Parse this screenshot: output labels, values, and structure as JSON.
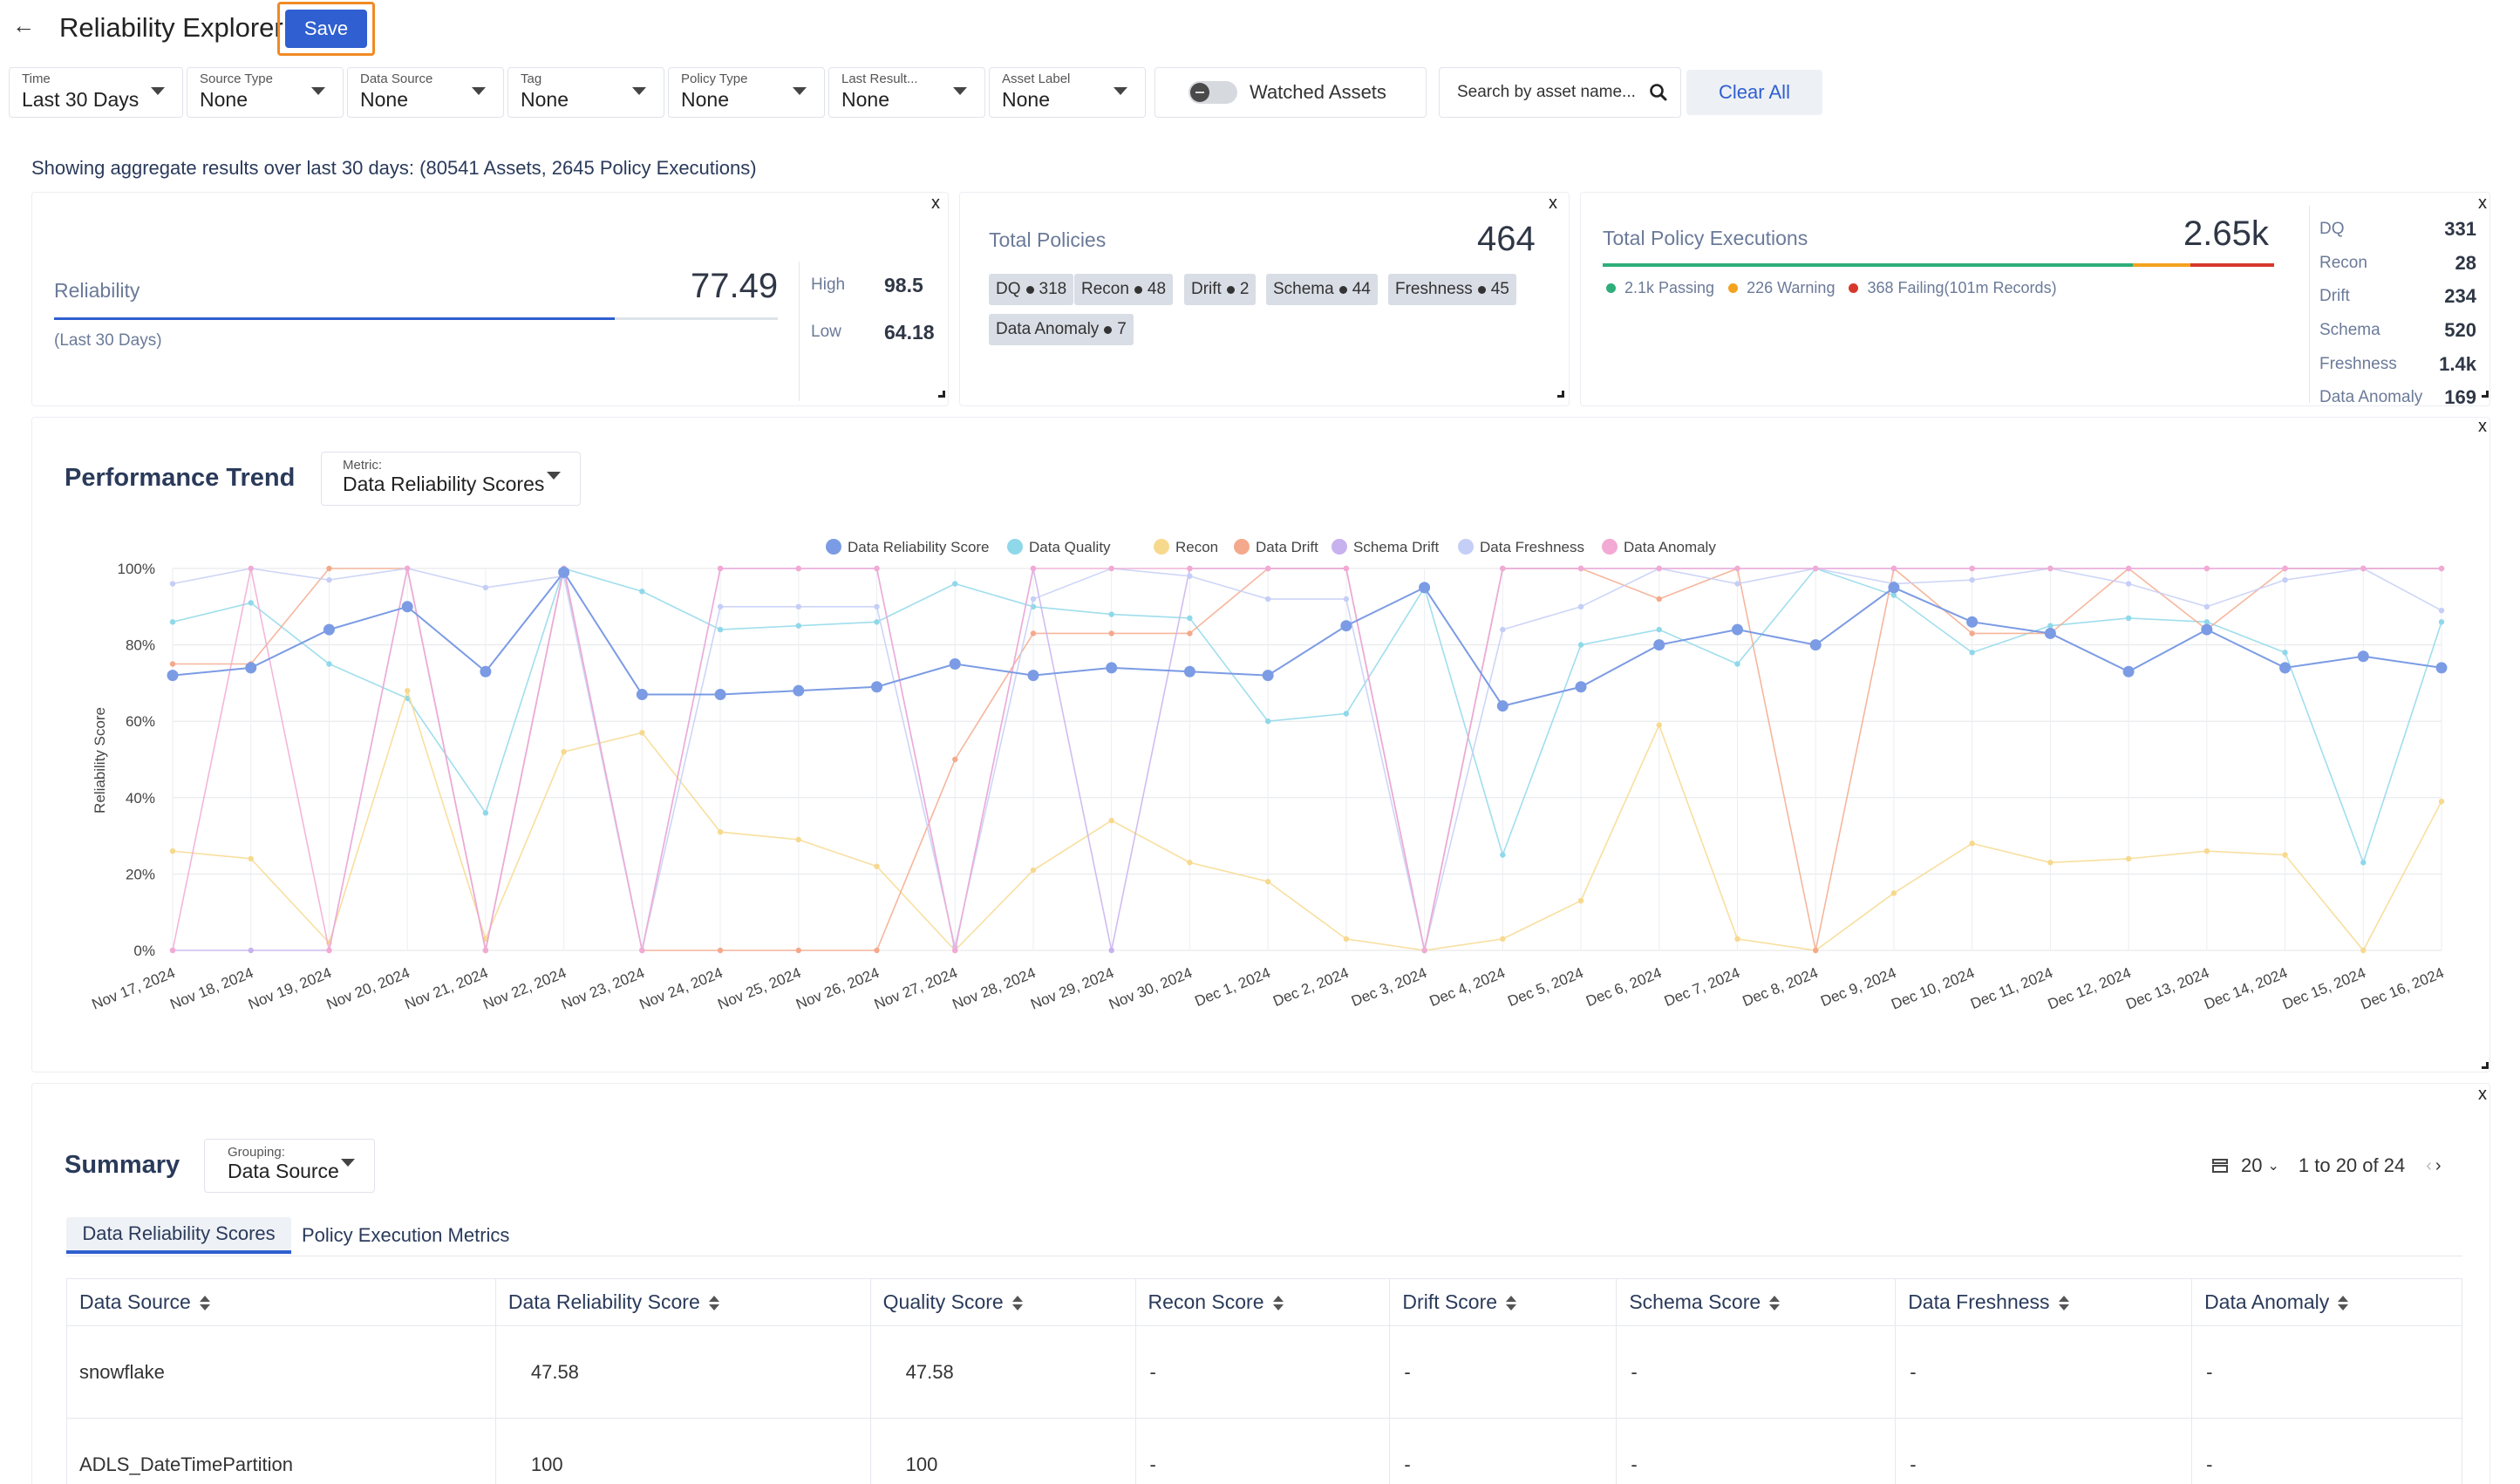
{
  "header": {
    "back_icon": "arrow-left-icon",
    "title": "Reliability Explorer",
    "save_label": "Save"
  },
  "filters": [
    {
      "label": "Time",
      "value": "Last 30 Days"
    },
    {
      "label": "Source Type",
      "value": "None"
    },
    {
      "label": "Data Source",
      "value": "None"
    },
    {
      "label": "Tag",
      "value": "None"
    },
    {
      "label": "Policy Type",
      "value": "None"
    },
    {
      "label": "Last Result...",
      "value": "None"
    },
    {
      "label": "Asset Label",
      "value": "None"
    }
  ],
  "watched_label": "Watched Assets",
  "search_placeholder": "Search by asset name...",
  "clear_label": "Clear All",
  "aggregate_text": "Showing aggregate results over last 30 days: (80541 Assets, 2645 Policy Executions)",
  "reliability": {
    "label": "Reliability",
    "value": "77.49",
    "period": "(Last 30 Days)",
    "high_label": "High",
    "high": "98.5",
    "low_label": "Low",
    "low": "64.18",
    "fill_fraction": 0.7749
  },
  "policies": {
    "label": "Total Policies",
    "value": "464",
    "tags": [
      {
        "name": "DQ",
        "count": "318"
      },
      {
        "name": "Recon",
        "count": "48"
      },
      {
        "name": "Drift",
        "count": "2"
      },
      {
        "name": "Schema",
        "count": "44"
      },
      {
        "name": "Freshness",
        "count": "45"
      },
      {
        "name": "Data Anomaly",
        "count": "7"
      }
    ]
  },
  "executions": {
    "label": "Total Policy Executions",
    "value": "2.65k",
    "passing": "2.1k Passing",
    "warning": "226 Warning",
    "failing": "368 Failing",
    "failing_records": "(101m Records)",
    "colors": {
      "passing": "#2fae7a",
      "warning": "#f3a21f",
      "failing": "#d8382c"
    },
    "bar_fractions": {
      "passing": 0.79,
      "warning": 0.085,
      "failing": 0.125
    },
    "breakdown": [
      {
        "name": "DQ",
        "value": "331"
      },
      {
        "name": "Recon",
        "value": "28"
      },
      {
        "name": "Drift",
        "value": "234"
      },
      {
        "name": "Schema",
        "value": "520"
      },
      {
        "name": "Freshness",
        "value": "1.4k"
      },
      {
        "name": "Data Anomaly",
        "value": "169"
      }
    ]
  },
  "close_glyph": "x",
  "trend": {
    "title": "Performance Trend",
    "metric_label": "Metric:",
    "metric_value": "Data Reliability Scores"
  },
  "chart_data": {
    "type": "line",
    "ylabel": "Reliability Score",
    "ylim": [
      0,
      100
    ],
    "yticks": [
      "0%",
      "20%",
      "40%",
      "60%",
      "80%",
      "100%"
    ],
    "grid": true,
    "legend_position": "top",
    "categories": [
      "Nov 17, 2024",
      "Nov 18, 2024",
      "Nov 19, 2024",
      "Nov 20, 2024",
      "Nov 21, 2024",
      "Nov 22, 2024",
      "Nov 23, 2024",
      "Nov 24, 2024",
      "Nov 25, 2024",
      "Nov 26, 2024",
      "Nov 27, 2024",
      "Nov 28, 2024",
      "Nov 29, 2024",
      "Nov 30, 2024",
      "Dec 1, 2024",
      "Dec 2, 2024",
      "Dec 3, 2024",
      "Dec 4, 2024",
      "Dec 5, 2024",
      "Dec 6, 2024",
      "Dec 7, 2024",
      "Dec 8, 2024",
      "Dec 9, 2024",
      "Dec 10, 2024",
      "Dec 11, 2024",
      "Dec 12, 2024",
      "Dec 13, 2024",
      "Dec 14, 2024",
      "Dec 15, 2024",
      "Dec 16, 2024"
    ],
    "series": [
      {
        "name": "Data Reliability Score",
        "color": "#7b9be4",
        "values": [
          72,
          74,
          84,
          90,
          73,
          99,
          67,
          67,
          68,
          69,
          75,
          72,
          74,
          73,
          72,
          85,
          95,
          64,
          69,
          80,
          84,
          80,
          95,
          86,
          83,
          73,
          84,
          74,
          77,
          74
        ]
      },
      {
        "name": "Data Quality",
        "color": "#8fd8ea",
        "values": [
          86,
          91,
          75,
          66,
          36,
          100,
          94,
          84,
          85,
          86,
          96,
          90,
          88,
          87,
          60,
          62,
          95,
          25,
          80,
          84,
          75,
          100,
          93,
          78,
          85,
          87,
          86,
          78,
          23,
          86
        ]
      },
      {
        "name": "Recon",
        "color": "#f7d98e",
        "values": [
          26,
          24,
          2,
          68,
          3,
          52,
          57,
          31,
          29,
          22,
          0,
          21,
          34,
          23,
          18,
          3,
          0,
          3,
          13,
          59,
          3,
          0,
          15,
          28,
          23,
          24,
          26,
          25,
          0,
          39
        ]
      },
      {
        "name": "Data Drift",
        "color": "#f4a98c",
        "values": [
          75,
          75,
          100,
          100,
          0,
          100,
          0,
          0,
          0,
          0,
          50,
          83,
          83,
          83,
          100,
          100,
          0,
          100,
          100,
          92,
          100,
          0,
          100,
          83,
          83,
          100,
          84,
          100,
          100,
          100
        ]
      },
      {
        "name": "Schema Drift",
        "color": "#c8b1ef",
        "values": [
          0,
          0,
          0,
          100,
          0,
          100,
          0,
          100,
          100,
          100,
          0,
          100,
          0,
          100,
          100,
          100,
          0,
          100,
          100,
          100,
          100,
          100,
          100,
          100,
          100,
          100,
          100,
          100,
          100,
          100
        ]
      },
      {
        "name": "Data Freshness",
        "color": "#c5cef6",
        "values": [
          96,
          100,
          97,
          100,
          95,
          98,
          0,
          90,
          90,
          90,
          1,
          92,
          100,
          98,
          92,
          92,
          0,
          84,
          90,
          100,
          96,
          100,
          96,
          97,
          100,
          96,
          90,
          97,
          100,
          89
        ]
      },
      {
        "name": "Data Anomaly",
        "color": "#f2a9d3",
        "values": [
          0,
          100,
          0,
          100,
          0,
          100,
          0,
          100,
          100,
          100,
          0,
          100,
          100,
          100,
          100,
          100,
          0,
          100,
          100,
          100,
          100,
          100,
          100,
          100,
          100,
          100,
          100,
          100,
          100,
          100
        ]
      }
    ]
  },
  "summary": {
    "title": "Summary",
    "grouping_label": "Grouping:",
    "grouping_value": "Data Source",
    "page_size": "20",
    "range_text": "1 to 20 of 24",
    "tabs": [
      "Data Reliability Scores",
      "Policy Execution Metrics"
    ],
    "columns": [
      "Data Source",
      "Data Reliability Score",
      "Quality Score",
      "Recon Score",
      "Drift Score",
      "Schema Score",
      "Data Freshness",
      "Data Anomaly"
    ],
    "rows": [
      [
        "snowflake",
        "47.58",
        "47.58",
        "-",
        "-",
        "-",
        "-",
        "-"
      ],
      [
        "ADLS_DateTimePartition",
        "100",
        "100",
        "-",
        "-",
        "-",
        "-",
        "-"
      ]
    ]
  }
}
